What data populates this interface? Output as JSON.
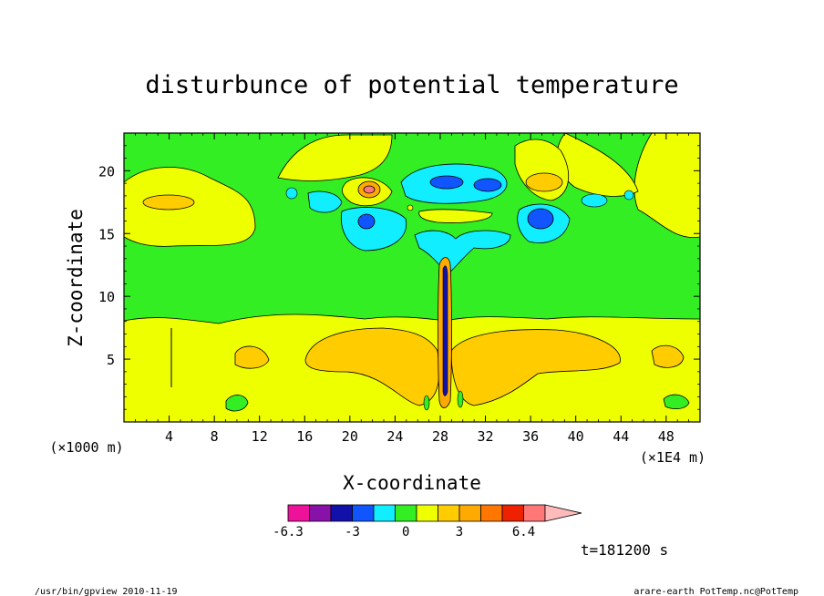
{
  "chart_data": {
    "type": "heatmap",
    "title": "disturbunce of potential temperature",
    "xlabel": "X-coordinate",
    "ylabel": "Z-coordinate",
    "x_unit_left": "(×1000 m)",
    "x_unit_right": "(×1E4 m)",
    "xlim": [
      0,
      51
    ],
    "ylim": [
      0,
      23
    ],
    "x_ticks": [
      4,
      8,
      12,
      16,
      20,
      24,
      28,
      32,
      36,
      40,
      44,
      48
    ],
    "y_ticks": [
      5,
      10,
      15,
      20
    ],
    "colorbar": {
      "colors": [
        "#ee1199",
        "#8811aa",
        "#1111aa",
        "#1155ff",
        "#11eeff",
        "#33ee22",
        "#eeff00",
        "#ffcc00",
        "#ffaa00",
        "#ff7700",
        "#ee2200",
        "#ff7777",
        "#ffbbbb"
      ],
      "tick_labels": [
        "-6.3",
        "-3",
        "0",
        "3",
        "6.4"
      ]
    },
    "layers": [
      {
        "name": "upper_green_band",
        "z_range": [
          8.2,
          23
        ],
        "value_class": "0"
      },
      {
        "name": "lower_yellow_band",
        "z_range": [
          0,
          8.2
        ],
        "value_class": "positive_small"
      },
      {
        "name": "orange_lobes",
        "z_range": [
          2,
          6.5
        ],
        "value_class": "positive_medium"
      },
      {
        "name": "cyan_wave_region",
        "z_range": [
          12.5,
          20
        ],
        "value_class": "negative_small"
      },
      {
        "name": "blue_cores",
        "z_range": [
          15,
          19
        ],
        "value_class": "negative_medium"
      }
    ],
    "time_label": "t=181200 s"
  },
  "footer": {
    "left": "/usr/bin/gpview   2010-11-19",
    "right": "arare-earth_PotTemp.nc@PotTemp"
  }
}
